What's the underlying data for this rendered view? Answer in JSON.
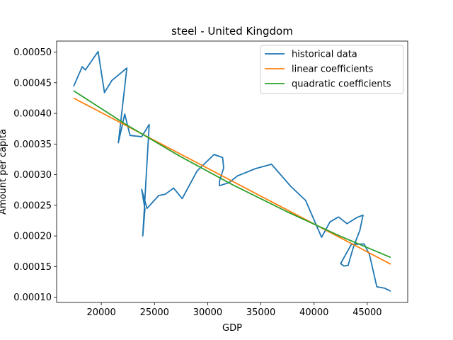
{
  "chart_data": {
    "type": "line",
    "title": "steel - United Kingdom",
    "xlabel": "GDP",
    "ylabel": "Amount per capita",
    "xlim": [
      15800,
      48800
    ],
    "ylim": [
      9.15e-05,
      0.000518
    ],
    "xticks": [
      20000,
      25000,
      30000,
      35000,
      40000,
      45000
    ],
    "yticks": [
      0.0001,
      0.00015,
      0.0002,
      0.00025,
      0.0003,
      0.00035,
      0.0004,
      0.00045,
      0.0005
    ],
    "legend_position": "top-right",
    "grid": false,
    "series": [
      {
        "name": "historical data",
        "color": "#1f77b4",
        "x": [
          17400,
          18200,
          18500,
          19700,
          20300,
          21000,
          22400,
          21600,
          22200,
          22700,
          23800,
          24500,
          23900,
          24100,
          23800,
          24000,
          24300,
          25400,
          26000,
          26800,
          27600,
          29000,
          30600,
          31400,
          31500,
          31100,
          31100,
          32000,
          32800,
          34500,
          36000,
          37800,
          39200,
          40700,
          41500,
          42300,
          43100,
          44000,
          44600,
          44300,
          43700,
          43200,
          42800,
          42500,
          43500,
          44700,
          45200,
          45900,
          46600,
          47200
        ],
        "y": [
          0.000444,
          0.000476,
          0.000471,
          0.000501,
          0.000434,
          0.000454,
          0.000474,
          0.000352,
          0.000399,
          0.000364,
          0.000362,
          0.000382,
          0.0002,
          0.000244,
          0.000276,
          0.000263,
          0.000245,
          0.000266,
          0.000268,
          0.000278,
          0.000261,
          0.000306,
          0.000333,
          0.000328,
          0.000311,
          0.000289,
          0.000282,
          0.000287,
          0.000298,
          0.00031,
          0.000317,
          0.000281,
          0.000258,
          0.000198,
          0.000223,
          0.000231,
          0.00022,
          0.00023,
          0.000234,
          0.000209,
          0.000182,
          0.000152,
          0.000151,
          0.000155,
          0.000186,
          0.000187,
          0.00017,
          0.000117,
          0.000115,
          0.00011
        ]
      },
      {
        "name": "linear coefficients",
        "color": "#ff7f0e",
        "x": [
          17400,
          47200
        ],
        "y": [
          0.000425,
          0.000154
        ]
      },
      {
        "name": "quadratic coefficients",
        "color": "#2ca02c",
        "x": [
          17400,
          22400,
          27400,
          32400,
          37400,
          42400,
          47200
        ],
        "y": [
          0.000437,
          0.000381,
          0.00033,
          0.000283,
          0.00024,
          0.0002,
          0.000165
        ]
      }
    ]
  }
}
